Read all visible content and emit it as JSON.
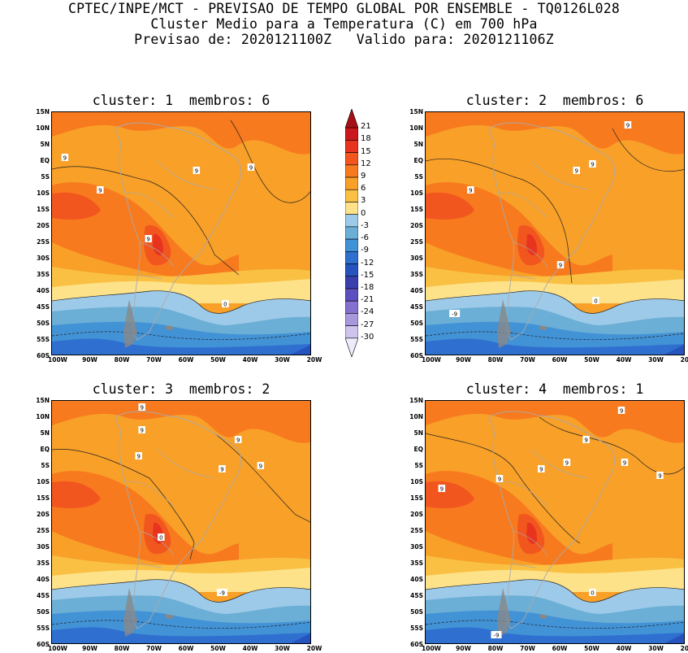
{
  "header": {
    "line1": "CPTEC/INPE/MCT - PREVISAO DE TEMPO GLOBAL POR ENSEMBLE - TQ0126L028",
    "line2": "Cluster Medio para a Temperatura (C) em 700 hPa",
    "line3": "Previsao de: 2020121100Z   Valido para: 2020121106Z"
  },
  "panels": [
    {
      "title": "cluster: 1  membros: 6",
      "labels": [
        "9",
        "9",
        "9",
        "9",
        "9",
        "0"
      ]
    },
    {
      "title": "cluster: 2  membros: 6",
      "labels": [
        "9",
        "9",
        "9",
        "9",
        "9",
        "0",
        "-9"
      ]
    },
    {
      "title": "cluster: 3  membros: 2",
      "labels": [
        "9",
        "9",
        "9",
        "9",
        "9",
        "9",
        "0",
        "-9"
      ]
    },
    {
      "title": "cluster: 4  membros: 1",
      "labels": [
        "9",
        "9",
        "9",
        "9",
        "9",
        "9",
        "9",
        "9",
        "0",
        "-9"
      ]
    }
  ],
  "lat_ticks": [
    "15N",
    "10N",
    "5N",
    "EQ",
    "5S",
    "10S",
    "15S",
    "20S",
    "25S",
    "30S",
    "35S",
    "40S",
    "45S",
    "50S",
    "55S",
    "60S"
  ],
  "lon_ticks": [
    "100W",
    "90W",
    "80W",
    "70W",
    "60W",
    "50W",
    "40W",
    "30W",
    "20W"
  ],
  "colorbar": {
    "labels": [
      "21",
      "18",
      "15",
      "12",
      "9",
      "6",
      "3",
      "0",
      "-3",
      "-6",
      "-9",
      "-12",
      "-15",
      "-18",
      "-21",
      "-24",
      "-27",
      "-30"
    ],
    "colors": [
      "#a50f15",
      "#cb181d",
      "#e8341f",
      "#f2561f",
      "#f87a1e",
      "#f8a028",
      "#f9c043",
      "#fde28a",
      "#9ecae9",
      "#6baed6",
      "#4292d6",
      "#2f6fd0",
      "#2554bf",
      "#3b3fae",
      "#5e4fbf",
      "#8470cf",
      "#aa98de",
      "#cfc4ee",
      "#efebfa"
    ]
  }
}
